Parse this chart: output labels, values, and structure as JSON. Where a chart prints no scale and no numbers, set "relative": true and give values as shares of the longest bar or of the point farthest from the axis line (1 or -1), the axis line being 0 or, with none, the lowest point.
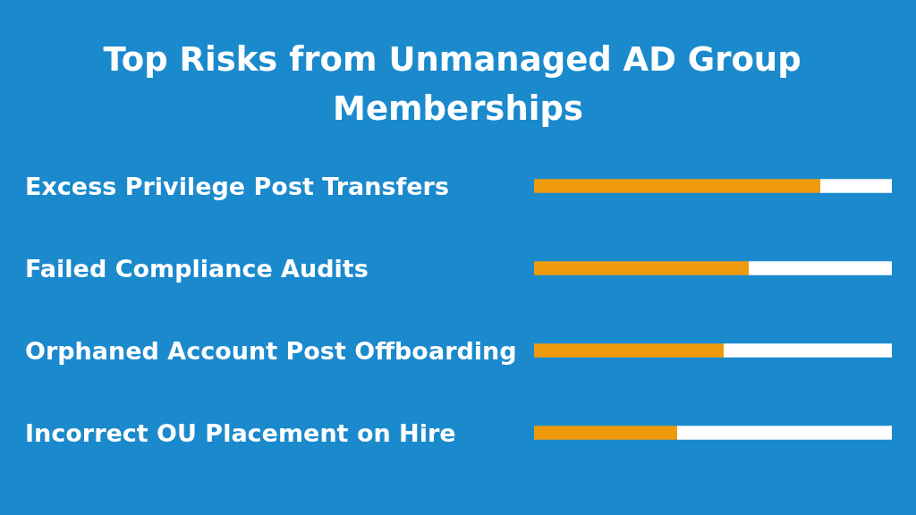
{
  "chart_data": {
    "type": "bar",
    "orientation": "horizontal",
    "stacked": true,
    "relative": true,
    "title": "Top Risks from Unmanaged AD Group Memberships",
    "categories": [
      "Excess Privilege Post Transfers",
      "Failed Compliance Audits",
      "Orphaned Account Post Offboarding",
      "Incorrect OU Placement on Hire"
    ],
    "series": [
      {
        "color": "#ef9a0c",
        "values": [
          0.8,
          0.6,
          0.53,
          0.4
        ]
      },
      {
        "color": "#ffffff",
        "values": [
          0.2,
          0.4,
          0.47,
          0.6
        ]
      }
    ]
  }
}
